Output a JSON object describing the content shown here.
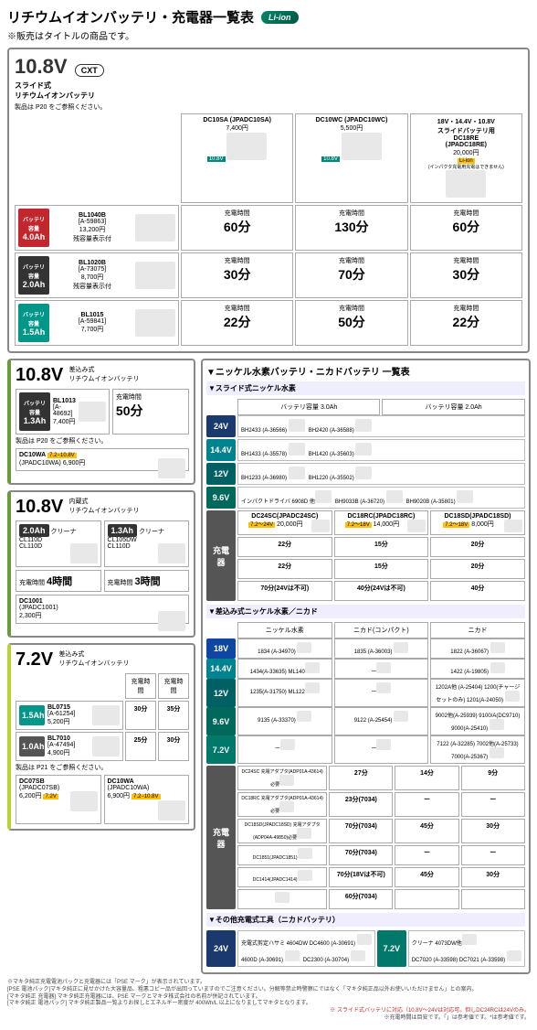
{
  "page": {
    "title": "リチウムイオンバッテリ・充電器一覧表",
    "lion": "Li-ion",
    "subtitle": "※販売はタイトルの商品です。"
  },
  "sec108": {
    "voltage": "10.8V",
    "cxt": "CXT",
    "subtype": "スライド式\nリチウムイオンバッテリ",
    "note": "製品は P20 をご参照ください。",
    "chargers": [
      {
        "model": "DC10SA (JPADC10SA)",
        "price": "7,400円",
        "tag": "10.8V"
      },
      {
        "model": "DC10WC (JPADC10WC)",
        "price": "5,500円",
        "tag": "10.8V"
      },
      {
        "model": "18V・14.4V・10.8V\nスライドバッテリ用\nDC18RE\n(JPADC18RE)",
        "price": "20,000円",
        "warn": "(インパクタ充電用充電はできません)"
      }
    ],
    "batteries": [
      {
        "ah": "4.0Ah",
        "ahcls": "ah-4",
        "model": "BL1040B",
        "code": "[A-59863]",
        "price": "13,200円",
        "sub": "残容量表示付",
        "times": [
          "60分",
          "130分",
          "60分"
        ]
      },
      {
        "ah": "2.0Ah",
        "ahcls": "ah-2",
        "model": "BL1020B",
        "code": "[A-73075]",
        "price": "8,700円",
        "sub": "残容量表示付",
        "times": [
          "30分",
          "70分",
          "30分"
        ]
      },
      {
        "ah": "1.5Ah",
        "ahcls": "ah-15",
        "model": "BL1015",
        "code": "[A-59841]",
        "price": "7,700円",
        "sub": "",
        "times": [
          "22分",
          "50分",
          "22分"
        ]
      }
    ],
    "timeLabel": "充電時間"
  },
  "sec108b": {
    "voltage": "10.8V",
    "sub": "差込み式\nリチウムイオンバッテリ",
    "ah": "1.3Ah",
    "ahcls": "ah-13",
    "batt": {
      "model": "BL1013",
      "code": "[A-48692]",
      "price": "7,400円"
    },
    "time": "50分",
    "timeLabel": "充電時間",
    "note": "製品は P20 をご参照ください。",
    "charger": {
      "model": "DC10WA",
      "code": "(JPADC10WA)",
      "price": "6,900円",
      "tag": "7.2−10.8V"
    }
  },
  "sec108c": {
    "voltage": "10.8V",
    "sub": "内蔵式\nリチウムイオンバッテリ",
    "cleaners": [
      {
        "ah": "2.0Ah",
        "label": "クリーナ",
        "models": "CL110D\nCL110D"
      },
      {
        "ah": "1.3Ah",
        "label": "クリーナ",
        "models": "CL105DW\nCL110D"
      }
    ],
    "times": [
      "4時間",
      "3時間"
    ],
    "timeLabel": "充電時間",
    "charger": {
      "model": "DC1001",
      "code": "(JPADC1001)",
      "price": "2,300円"
    }
  },
  "sec72": {
    "voltage": "7.2V",
    "sub": "差込み式\nリチウムイオンバッテリ",
    "batteries": [
      {
        "ah": "1.5Ah",
        "ahcls": "ah-15",
        "model": "BL0715",
        "code": "[A-61254]",
        "price": "5,200円",
        "times": [
          "30分",
          "35分"
        ]
      },
      {
        "ah": "1.0Ah",
        "ahcls": "ah-1",
        "model": "BL7010",
        "code": "[A-47494]",
        "price": "4,900円",
        "times": [
          "25分",
          "30分"
        ]
      }
    ],
    "timeLabel": "充電時間",
    "note": "製品は P21 をご参照ください。",
    "chargers": [
      {
        "model": "DC07SB",
        "code": "(JPADC07SB)",
        "price": "6,200円",
        "tag": "7.2V"
      },
      {
        "model": "DC10WA",
        "code": "(JPADC10WA)",
        "price": "6,900円",
        "tag": "7.2−10.8V"
      }
    ]
  },
  "nicad": {
    "title": "▼ニッケル水素バッテリ・ニカドバッテリ 一覧表",
    "slideTitle": "▼スライド式ニッケル水素",
    "hdr": {
      "c1": "バッテリ容量 3.0Ah",
      "c2": "バッテリ容量 2.0Ah"
    },
    "rows": [
      {
        "v": "24V",
        "cls": "v24",
        "items": [
          "BH2433 (A-36566) ",
          "BH2420 (A-36588) "
        ]
      },
      {
        "v": "14.4V",
        "cls": "v144",
        "items": [
          "BH1433 (A-35578) ",
          "BH1420 (A-35603) "
        ]
      },
      {
        "v": "12V",
        "cls": "v12",
        "items": [
          "BH1233 (A-36980) ",
          "BH1220 (A-35502) "
        ]
      },
      {
        "v": "9.6V",
        "cls": "v96",
        "items": [
          "インパクトドライバ 6908D 他",
          "BH9033B (A-36720) ",
          "BH9020B (A-35801) "
        ]
      }
    ],
    "chgGrid": {
      "label": "充電器",
      "chargers": [
        {
          "model": "DC24SC(JPADC24SC)",
          "tag": "7.2〜24V",
          "price": "20,000円"
        },
        {
          "model": "DC18RC(JPADC18RC)",
          "tag": "7.2〜18V",
          "price": "14,000円"
        },
        {
          "model": "DC18SD(JPADC18SD)",
          "tag": "7.2〜18V",
          "price": "8,000円"
        }
      ],
      "times": [
        [
          "22分",
          "15分",
          "20分"
        ],
        [
          "22分",
          "15分",
          "20分"
        ],
        [
          "70分(24Vは不可)",
          "40分(24Vは不可)",
          "40分"
        ]
      ]
    },
    "insertTitle": "▼差込み式ニッケル水素／ニカド",
    "insertHdr": [
      "ニッケル水素",
      "ニカド(コンパクト)",
      "ニカド"
    ],
    "insertRows": [
      {
        "v": "18V",
        "cls": "v18",
        "items": [
          "1834 (A-34970) ",
          "1835 (A-36003) ",
          "1822 (A-36067) "
        ]
      },
      {
        "v": "14.4V",
        "cls": "v144",
        "items": [
          "1434(A-33635)  ML140",
          "ー",
          "1422 (A-19805) "
        ]
      },
      {
        "v": "12V",
        "cls": "v12",
        "items": [
          "1235(A-31750)  ML122",
          "ー",
          "1202A他 (A-25404)  1200(チャージセットのみ)  1201(A-24050) "
        ]
      },
      {
        "v": "9.6V",
        "cls": "v96",
        "items": [
          "9135 (A-33370) ",
          "9122 (A-25454) ",
          "9002他(A-25939)  9100/A(DC9710)  9000(A-25410) "
        ]
      },
      {
        "v": "7.2V",
        "cls": "v72",
        "items": [
          "ー",
          "ー",
          "7122 (A-32285)  7002他(A-25733)  7000(A-25367) "
        ]
      }
    ],
    "insertChg": {
      "label": "充電器",
      "rows": [
        {
          "chg": "DC24SC 充電アダプタ(ADP01A-43614)必要",
          "t": [
            "27分",
            "14分",
            "9分"
          ]
        },
        {
          "chg": "DC18RC 充電アダプタ(ADP01A-43614)必要",
          "t": [
            "23分(7034)",
            "ー",
            "ー"
          ]
        },
        {
          "chg": "DC18SD(JPADC18SD) 充電アダプタ(ADP04A-49850)必要",
          "t": [
            "70分(7034)",
            "45分",
            "30分"
          ]
        },
        {
          "chg": "DC1851(JPADC1851)",
          "t": [
            "70分(7034)",
            "ー",
            "ー"
          ]
        },
        {
          "chg": "DC1414(JPADC1414)",
          "t": [
            "70分(18Vは不可)",
            "45分",
            "30分"
          ]
        },
        {
          "chg": "",
          "t": [
            "60分(7034)",
            "",
            ""
          ]
        }
      ]
    },
    "otherTitle": "▼その他充電式工具（ニカドバッテリ）",
    "other": {
      "v": "24V",
      "cls": "v24",
      "items": [
        "充電式剪定ハサミ 4604DW DC4600 (A-30691) ",
        "4600D (A-30691) ",
        "DC2300 (A-30704) "
      ],
      "v2": "7.2V",
      "cls2": "v72",
      "items2": [
        "クリーナ 4073DW他",
        "DC7020 (A-33598) DC7021 (A-33598) "
      ]
    }
  },
  "footnotes": {
    "l1": "※マキタ純正充電電池パックと充電器には「PSE マーク」が表示されています。",
    "l2": " [PSE 電池パック]マキタ純正に見せかけた大容量品、粗悪コピー品が出回っていますのでご注意ください。分解等禁止時警察にではなく「マキタ純正品以外お使いいただけません」との案内。",
    "l3": " [マキタ純正 充電器] マキタ純正充電器には、PSE マークとマキタ株式会社の名前が併記されています。",
    "l4": " [マキタ純正 電池パック] マキタ純正製品一覧よりお探しとエネルギー密度が 400Wh/L 以上になりましてマキタとなります。",
    "r1": "※ スライド式バッテリに対応（10.8V〜24Vは対応可。但しDC24RCは24Vのみ。",
    "r2": "※充電時間は目安です。「」は参考値です。*は参考値です。"
  }
}
